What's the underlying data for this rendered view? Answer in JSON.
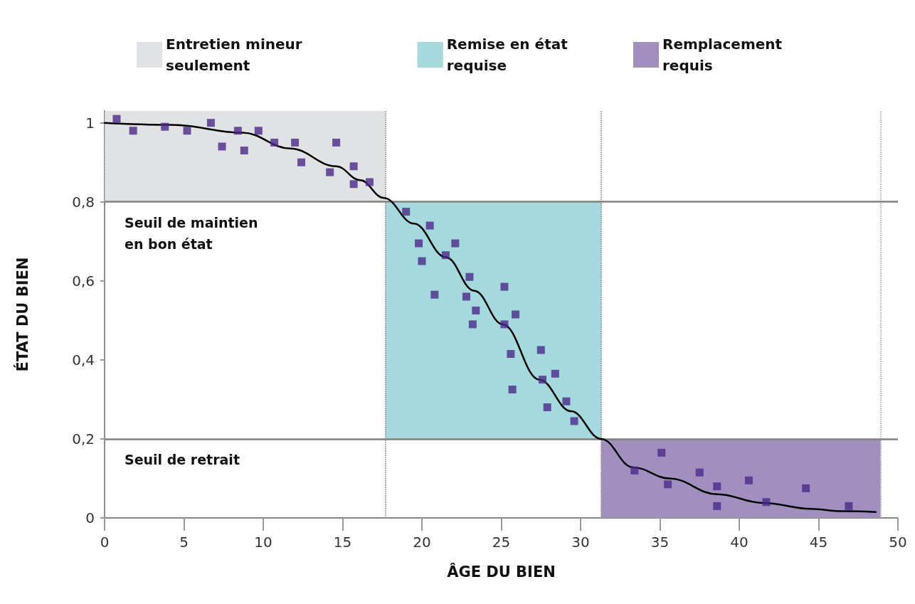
{
  "chart_data": {
    "type": "scatter",
    "xlabel": "ÂGE DU BIEN",
    "ylabel": "ÉTAT DU BIEN",
    "xlim": [
      0,
      50
    ],
    "xticks": [
      0,
      5,
      10,
      15,
      20,
      25,
      30,
      35,
      40,
      45,
      50
    ],
    "ylim": [
      0,
      1.03
    ],
    "yticks": [
      0,
      {
        "value": 0.2,
        "label": "0,2"
      },
      {
        "value": 0.4,
        "label": "0,4"
      },
      {
        "value": 0.6,
        "label": "0,6"
      },
      {
        "value": 0.8,
        "label": "0,8"
      },
      1
    ],
    "grid": false,
    "legend": "top",
    "marker": "square",
    "series": [
      {
        "color": "#4b2a88",
        "x": [
          0.76,
          1.8,
          3.8,
          5.2,
          6.7,
          7.4,
          8.4,
          8.8,
          9.7,
          10.7,
          12.0,
          12.4,
          14.2,
          14.6,
          15.7,
          15.7,
          16.7,
          19.0,
          19.8,
          20.5,
          20.0,
          20.8,
          21.5,
          22.1,
          23.0,
          22.8,
          23.4,
          23.2,
          25.2,
          25.2,
          25.9,
          25.6,
          25.7,
          27.6,
          27.5,
          28.4,
          27.9,
          29.1,
          29.6,
          33.4,
          35.1,
          35.5,
          37.5,
          38.6,
          38.6,
          40.6,
          41.7,
          44.2,
          46.9
        ],
        "values": [
          1.01,
          0.98,
          0.99,
          0.98,
          1.0,
          0.94,
          0.98,
          0.93,
          0.98,
          0.95,
          0.95,
          0.9,
          0.875,
          0.95,
          0.89,
          0.845,
          0.85,
          0.775,
          0.695,
          0.74,
          0.65,
          0.565,
          0.665,
          0.695,
          0.61,
          0.56,
          0.525,
          0.49,
          0.585,
          0.49,
          0.515,
          0.415,
          0.325,
          0.35,
          0.425,
          0.365,
          0.28,
          0.295,
          0.245,
          0.12,
          0.165,
          0.085,
          0.115,
          0.08,
          0.03,
          0.095,
          0.04,
          0.075,
          0.03
        ]
      },
      {
        "type": "line",
        "color": "#000000",
        "marker": "none",
        "x": [
          0,
          4.2,
          8.7,
          11.7,
          14.6,
          16.1,
          17.6,
          19.5,
          21.5,
          23.3,
          25.1,
          27.4,
          29.4,
          31.3,
          33.3,
          35.6,
          38.6,
          41.5,
          44.5,
          46.5,
          48.6
        ],
        "values": [
          1.0,
          0.995,
          0.975,
          0.935,
          0.89,
          0.855,
          0.81,
          0.745,
          0.66,
          0.575,
          0.49,
          0.35,
          0.27,
          0.2,
          0.128,
          0.1,
          0.06,
          0.038,
          0.023,
          0.017,
          0.015
        ]
      }
    ],
    "ref_lines": [
      {
        "axis": "y",
        "value": 0.8,
        "label": "Seuil de maintien en bon état",
        "color": "#808080"
      },
      {
        "axis": "y",
        "value": 0.2,
        "label": "Seuil de retrait",
        "color": "#808080"
      }
    ],
    "bands": [
      {
        "axis": "x",
        "from": 0,
        "to": 17.7,
        "label": "Entretien mineur seulement",
        "color": "#e1e2e4"
      },
      {
        "axis": "x",
        "from": 17.7,
        "to": 31.3,
        "label": "Remise en état requise",
        "color": "#a4dadd"
      },
      {
        "axis": "x",
        "from": 31.3,
        "to": 48.9,
        "label": "Remplacement requis",
        "color": "#a18fc0"
      }
    ]
  }
}
